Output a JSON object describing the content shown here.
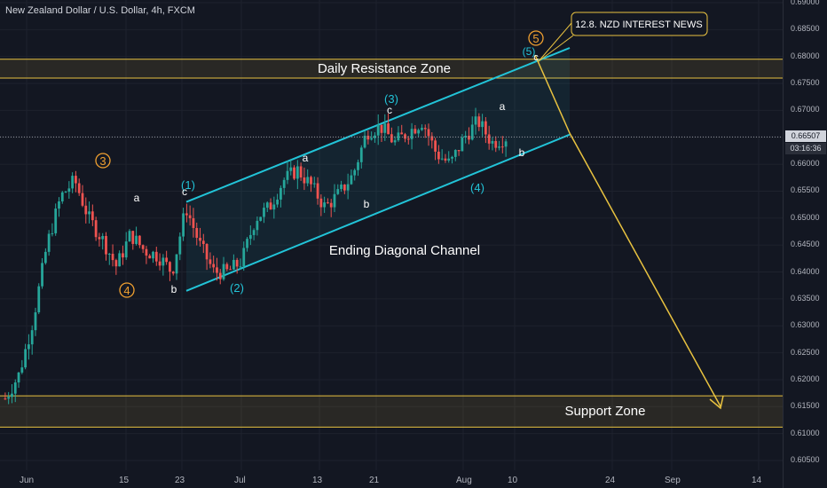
{
  "symbol_title": "New Zealand Dollar / U.S. Dollar, 4h, FXCM",
  "colors": {
    "background": "#131722",
    "bull": "#26a69a",
    "bear": "#ef5350",
    "channel": "#22c4d8",
    "zone": "#e8c240",
    "text": "#ffffff",
    "wave_orange": "#f0a030"
  },
  "price_axis": {
    "ticks": [
      "0.69000",
      "0.68500",
      "0.68000",
      "0.67500",
      "0.67000",
      "0.66500",
      "0.66000",
      "0.65500",
      "0.65000",
      "0.64500",
      "0.64000",
      "0.63500",
      "0.63000",
      "0.62500",
      "0.62000",
      "0.61500",
      "0.61000",
      "0.60500"
    ],
    "current_price": "0.66507",
    "countdown": "03:16:36"
  },
  "time_axis": {
    "ticks": [
      "Jun",
      "15",
      "23",
      "Jul",
      "13",
      "21",
      "Aug",
      "10",
      "24",
      "Sep",
      "14"
    ]
  },
  "annotations": {
    "resistance_zone": "Daily Resistance Zone",
    "support_zone": "Support Zone",
    "channel_label": "Ending Diagonal Channel",
    "news_box": "12.8. NZD INTEREST NEWS"
  },
  "wave_labels": {
    "w3": "3",
    "w4": "4",
    "w5": "5",
    "p1": "(1)",
    "p2": "(2)",
    "p3": "(3)",
    "p4": "(4)",
    "p5": "(5)",
    "a": "a",
    "b": "b",
    "c": "c"
  },
  "chart_data": {
    "type": "candlestick",
    "title": "New Zealand Dollar / U.S. Dollar, 4h, FXCM",
    "ylim": [
      0.6025,
      0.6925
    ],
    "current_price": 0.66507,
    "zones": [
      {
        "name": "Daily Resistance Zone",
        "from": 0.676,
        "to": 0.6795
      },
      {
        "name": "Support Zone",
        "from": 0.6112,
        "to": 0.617
      }
    ],
    "channel": {
      "name": "Ending Diagonal Channel",
      "upper_start": 0.653,
      "upper_end": 0.6816,
      "lower_start": 0.6365,
      "lower_end": 0.6655
    },
    "path_points": [
      0.6165,
      0.621,
      0.631,
      0.645,
      0.654,
      0.657,
      0.65,
      0.646,
      0.641,
      0.647,
      0.644,
      0.643,
      0.64,
      0.652,
      0.645,
      0.64,
      0.64,
      0.642,
      0.65,
      0.652,
      0.657,
      0.659,
      0.656,
      0.652,
      0.6545,
      0.658,
      0.666,
      0.667,
      0.664,
      0.666,
      0.668,
      0.662,
      0.66,
      0.665,
      0.668,
      0.664,
      0.665
    ]
  }
}
